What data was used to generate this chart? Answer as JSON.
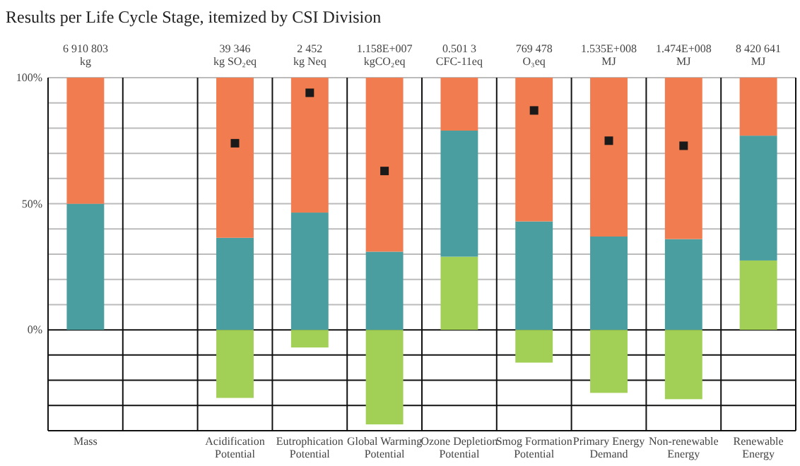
{
  "chart_data": {
    "type": "bar",
    "title": "Results per Life Cycle Stage, itemized by CSI Division",
    "categories": [
      "Mass",
      null,
      "Acidification Potential",
      "Eutrophication Potential",
      "Global Warming Potential",
      "Ozone Depletion Potential",
      "Smog Formation Potential",
      "Primary Energy Demand",
      "Non-renewable Energy",
      "Renewable Energy"
    ],
    "stacked": true,
    "series": [
      {
        "color": "#a2cf55",
        "values": [
          0,
          null,
          -27,
          -7,
          -37.5,
          29,
          -13,
          -25,
          -27.5,
          27.5
        ]
      },
      {
        "color": "#4a9ea0",
        "values": [
          50,
          null,
          36.5,
          46.5,
          31,
          50,
          43,
          37,
          36,
          49.5
        ]
      },
      {
        "color": "#f07c50",
        "values": [
          50,
          null,
          63.5,
          53.5,
          69,
          21,
          57,
          63,
          64,
          23
        ]
      },
      {
        "type": "scatter",
        "marker": "square",
        "color": "#1a1a1a",
        "values": [
          null,
          null,
          74,
          94,
          63,
          null,
          87,
          75,
          73,
          null
        ]
      }
    ],
    "annotations": [
      "6 910 803\nkg",
      "39 346\nkg SO₂eq",
      "2 452\nkg Neq",
      "1.158E+007\nkgCO₂eq",
      "0.501 3\nCFC-11eq",
      "769 478\nO₃eq",
      "1.535E+008\nMJ",
      "1.474E+008\nMJ",
      "8 420 641\nMJ"
    ],
    "ylim": [
      -40,
      100
    ],
    "yticks": [
      {
        "value": -40,
        "label": null
      },
      {
        "value": -30,
        "label": null
      },
      {
        "value": -20,
        "label": null
      },
      {
        "value": -10,
        "label": null
      },
      {
        "value": 0,
        "label": "0%"
      },
      {
        "value": 10,
        "label": null
      },
      {
        "value": 20,
        "label": null
      },
      {
        "value": 30,
        "label": null
      },
      {
        "value": 40,
        "label": null
      },
      {
        "value": 50,
        "label": "50%"
      },
      {
        "value": 60,
        "label": null
      },
      {
        "value": 70,
        "label": null
      },
      {
        "value": 80,
        "label": null
      },
      {
        "value": 90,
        "label": null
      },
      {
        "value": 100,
        "label": "100%"
      }
    ],
    "grid": "y"
  }
}
